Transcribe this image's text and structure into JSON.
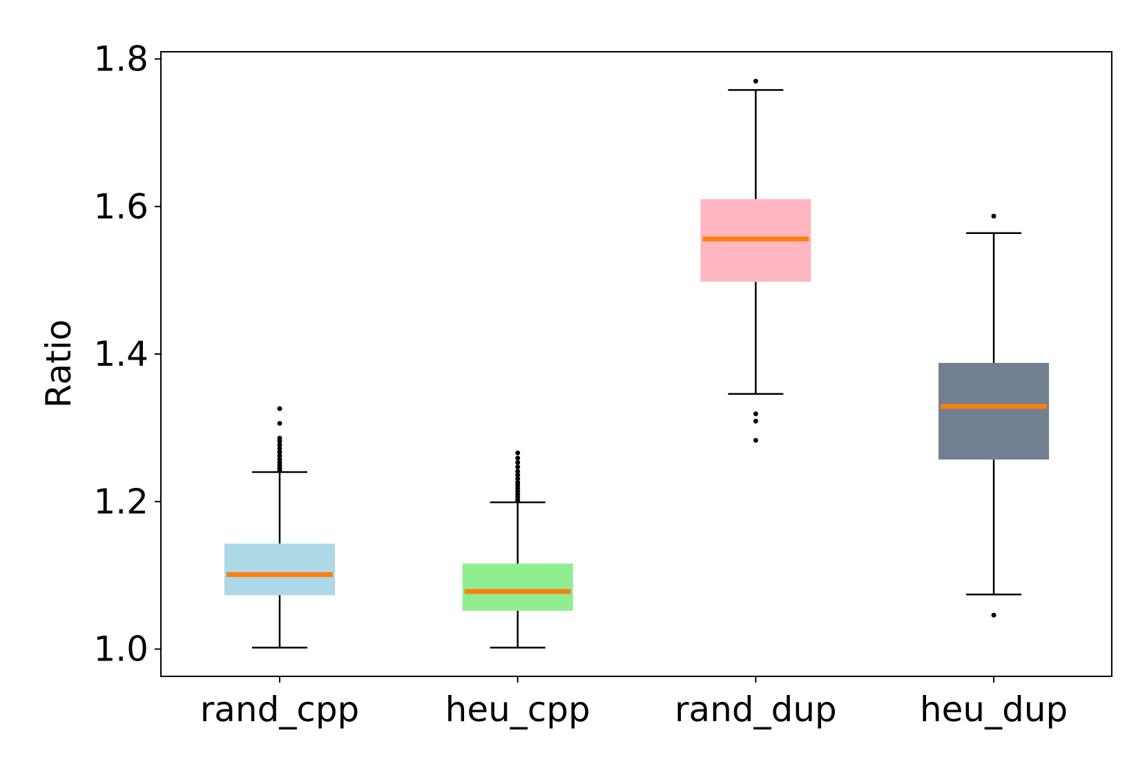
{
  "chart_data": {
    "type": "boxplot",
    "title": "",
    "xlabel": "",
    "ylabel": "Ratio",
    "ylim": [
      0.965,
      1.81
    ],
    "yticks": [
      1.0,
      1.2,
      1.4,
      1.6,
      1.8
    ],
    "ytick_labels": [
      "1.0",
      "1.2",
      "1.4",
      "1.6",
      "1.8"
    ],
    "grid": false,
    "median_color": "#ff7f0e",
    "boxes": [
      {
        "name": "rand_cpp",
        "color": "#add8e6",
        "whisker_low": 1.002,
        "q1": 1.073,
        "median": 1.101,
        "q3": 1.143,
        "whisker_high": 1.24,
        "outliers": [
          1.242,
          1.245,
          1.249,
          1.253,
          1.257,
          1.262,
          1.267,
          1.272,
          1.277,
          1.282,
          1.286,
          1.306,
          1.326
        ]
      },
      {
        "name": "heu_cpp",
        "color": "#90ee90",
        "whisker_low": 1.002,
        "q1": 1.052,
        "median": 1.078,
        "q3": 1.116,
        "whisker_high": 1.199,
        "outliers": [
          1.202,
          1.206,
          1.21,
          1.214,
          1.218,
          1.222,
          1.226,
          1.231,
          1.236,
          1.241,
          1.247,
          1.253,
          1.259,
          1.266
        ]
      },
      {
        "name": "rand_dup",
        "color": "#ffb6c1",
        "whisker_low": 1.346,
        "q1": 1.498,
        "median": 1.556,
        "q3": 1.61,
        "whisker_high": 1.758,
        "outliers": [
          1.283,
          1.309,
          1.319,
          1.77
        ]
      },
      {
        "name": "heu_dup",
        "color": "#708090",
        "whisker_low": 1.074,
        "q1": 1.257,
        "median": 1.329,
        "q3": 1.388,
        "whisker_high": 1.564,
        "outliers": [
          1.046,
          1.587
        ]
      }
    ]
  }
}
